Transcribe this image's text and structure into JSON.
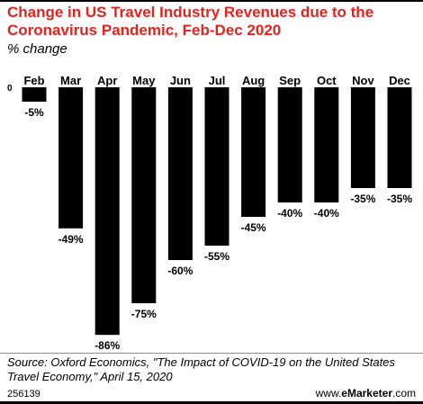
{
  "header": {
    "title": "Change in US Travel Industry Revenues due to the Coronavirus Pandemic, Feb-Dec 2020",
    "subtitle": "% change"
  },
  "chart_data": {
    "type": "bar",
    "title": "Change in US Travel Industry Revenues due to the Coronavirus Pandemic, Feb-Dec 2020",
    "subtitle": "% change",
    "categories": [
      "Feb",
      "Mar",
      "Apr",
      "May",
      "Jun",
      "Jul",
      "Aug",
      "Sep",
      "Oct",
      "Nov",
      "Dec"
    ],
    "values": [
      -5,
      -49,
      -86,
      -75,
      -60,
      -55,
      -45,
      -40,
      -40,
      -35,
      -35
    ],
    "value_labels": [
      "-5%",
      "-49%",
      "-86%",
      "-75%",
      "-60%",
      "-55%",
      "-45%",
      "-40%",
      "-40%",
      "-35%",
      "-35%"
    ],
    "zero_label": "0",
    "xlabel": "",
    "ylabel": "",
    "ylim": [
      -86,
      0
    ],
    "grid": false,
    "bar_color": "#000000"
  },
  "footer": {
    "source": "Source: Oxford Economics, \"The Impact of COVID-19 on the United States Travel Economy,\" April 15, 2020",
    "chart_id": "256139",
    "brand_prefix": "www.",
    "brand_name": "eMarketer",
    "brand_suffix": ".com"
  },
  "colors": {
    "title": "#e8211c",
    "bars": "#000000",
    "divider": "#8c8c8c"
  }
}
